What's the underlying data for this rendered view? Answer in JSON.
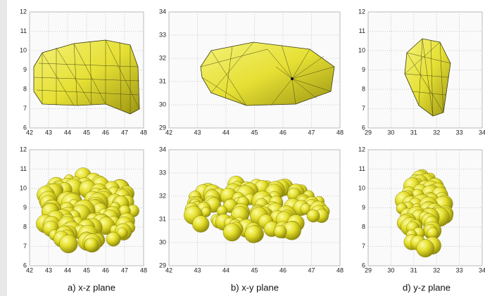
{
  "panels": [
    {
      "xticks": [
        "42",
        "43",
        "44",
        "45",
        "46",
        "47",
        "48"
      ],
      "yticks": [
        "12",
        "11",
        "10",
        "9",
        "8",
        "7",
        "6"
      ]
    },
    {
      "xticks": [
        "42",
        "43",
        "44",
        "45",
        "46",
        "47",
        "48"
      ],
      "yticks": [
        "34",
        "33",
        "32",
        "31",
        "30",
        "29"
      ]
    },
    {
      "xticks": [
        "29",
        "30",
        "31",
        "32",
        "33",
        "34"
      ],
      "yticks": [
        "12",
        "11",
        "10",
        "9",
        "8",
        "7",
        "6"
      ]
    },
    {
      "xticks": [
        "42",
        "43",
        "44",
        "45",
        "46",
        "47",
        "48"
      ],
      "yticks": [
        "12",
        "11",
        "10",
        "9",
        "8",
        "7",
        "6"
      ]
    },
    {
      "xticks": [
        "42",
        "43",
        "44",
        "45",
        "46",
        "47",
        "48"
      ],
      "yticks": [
        "34",
        "33",
        "32",
        "31",
        "30",
        "29"
      ]
    },
    {
      "xticks": [
        "29",
        "30",
        "31",
        "32",
        "33",
        "34"
      ],
      "yticks": [
        "12",
        "11",
        "10",
        "9",
        "8",
        "7",
        "6"
      ]
    }
  ],
  "captions": [
    "a) x-z plane",
    "b) x-y plane",
    "d) y-z plane"
  ]
}
